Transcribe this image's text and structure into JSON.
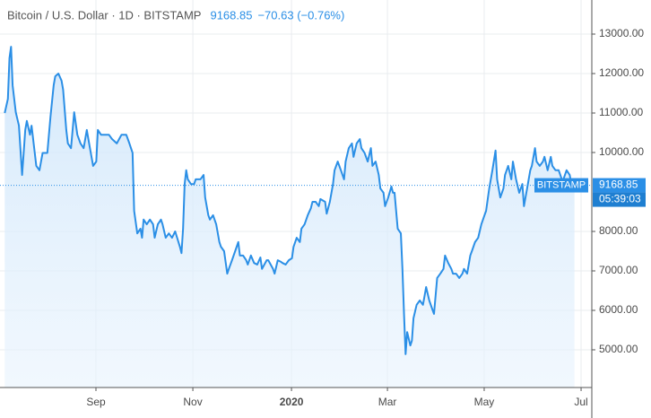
{
  "chart_data": {
    "type": "line",
    "title": "Bitcoin / U.S. Dollar · 1D · BITSTAMP",
    "last_price": 9168.85,
    "change": "−70.63 (−0.76%)",
    "price_label_exchange": "BITSTAMP",
    "countdown": "05:39:03",
    "xlim": [
      0,
      375
    ],
    "xticks": [
      {
        "value": 60.8,
        "label": "Sep"
      },
      {
        "value": 122.2,
        "label": "Nov"
      },
      {
        "value": 184.7,
        "label": "2020"
      },
      {
        "value": 245.5,
        "label": "Mar"
      },
      {
        "value": 306.8,
        "label": "May"
      },
      {
        "value": 368.2,
        "label": "Jul"
      }
    ],
    "ylim": [
      4045,
      13864
    ],
    "yticks": [
      {
        "value": 13000,
        "label": "13000.00"
      },
      {
        "value": 12000,
        "label": "12000.00"
      },
      {
        "value": 11000,
        "label": "11000.00"
      },
      {
        "value": 10000,
        "label": "10000.00"
      },
      {
        "value": 8000,
        "label": "8000.00"
      },
      {
        "value": 7000,
        "label": "7000.00"
      },
      {
        "value": 6000,
        "label": "6000.00"
      },
      {
        "value": 5000,
        "label": "5000.00"
      }
    ],
    "grid": true,
    "series": [
      {
        "color": "#2b8fe6",
        "x": [
          3,
          5,
          6,
          7,
          8,
          10,
          12,
          14,
          15,
          16,
          17,
          19,
          20,
          23,
          25,
          27,
          30,
          32,
          34,
          35,
          37,
          39,
          40,
          42,
          43,
          45,
          47,
          49,
          51,
          53,
          55,
          57,
          59,
          61,
          62,
          64,
          66,
          69,
          71,
          74,
          77,
          80,
          82,
          84,
          85,
          87,
          89,
          90,
          91,
          93,
          95,
          97,
          98,
          100,
          102,
          103,
          105,
          107,
          109,
          111,
          114,
          115,
          116,
          117,
          118,
          119,
          121,
          123,
          124,
          127,
          129,
          130,
          132,
          133,
          135,
          137,
          139,
          140,
          142,
          144,
          145,
          147,
          149,
          151,
          152,
          154,
          156,
          157,
          159,
          161,
          163,
          165,
          166,
          169,
          170,
          173,
          174,
          176,
          178,
          179,
          181,
          183,
          185,
          186,
          188,
          190,
          191,
          193,
          195,
          197,
          198,
          200,
          202,
          203,
          206,
          207,
          209,
          211,
          212,
          214,
          216,
          218,
          219,
          221,
          223,
          224,
          226,
          228,
          229,
          231,
          233,
          235,
          236,
          238,
          240,
          241,
          243,
          244,
          246,
          248,
          249,
          250,
          252,
          254,
          255,
          256,
          257,
          258,
          260,
          261,
          262,
          264,
          266,
          268,
          269,
          270,
          272,
          274,
          275,
          277,
          279,
          281,
          282,
          284,
          286,
          287,
          289,
          291,
          293,
          294,
          296,
          298,
          299,
          301,
          303,
          305,
          307,
          308,
          310,
          312,
          314,
          315,
          317,
          319,
          320,
          322,
          324,
          325,
          327,
          329,
          331,
          332,
          334,
          336,
          337,
          339,
          340,
          342,
          344,
          345,
          347,
          349,
          350,
          352,
          354,
          356,
          357,
          359,
          361,
          362,
          364
        ],
        "values": [
          11000,
          11360,
          12390,
          12680,
          11700,
          11020,
          10680,
          9430,
          9990,
          10570,
          10800,
          10450,
          10680,
          9660,
          9550,
          9990,
          9990,
          10910,
          11700,
          11930,
          12000,
          11820,
          11590,
          10570,
          10230,
          10110,
          11020,
          10450,
          10230,
          10110,
          10570,
          10110,
          9660,
          9770,
          10570,
          10450,
          10450,
          10450,
          10340,
          10230,
          10450,
          10450,
          10230,
          9990,
          8520,
          7950,
          8070,
          7840,
          8300,
          8180,
          8300,
          8180,
          7840,
          8180,
          8300,
          8180,
          7840,
          7950,
          7840,
          8000,
          7610,
          7450,
          8070,
          9200,
          9550,
          9320,
          9200,
          9200,
          9320,
          9320,
          9430,
          8860,
          8410,
          8300,
          8410,
          8180,
          7730,
          7610,
          7500,
          6930,
          7050,
          7270,
          7500,
          7730,
          7390,
          7390,
          7270,
          7160,
          7390,
          7200,
          7160,
          7340,
          7050,
          7270,
          7270,
          7050,
          6930,
          7270,
          7230,
          7200,
          7160,
          7270,
          7320,
          7610,
          7840,
          7730,
          8070,
          8180,
          8410,
          8590,
          8750,
          8750,
          8640,
          8820,
          8750,
          8450,
          8750,
          9200,
          9550,
          9770,
          9550,
          9320,
          9770,
          10110,
          10230,
          9890,
          10230,
          10340,
          10110,
          9990,
          9770,
          10110,
          9660,
          9770,
          9430,
          9090,
          8980,
          8640,
          8860,
          9140,
          8980,
          8980,
          8070,
          7950,
          7050,
          5910,
          4890,
          5450,
          5110,
          5230,
          5800,
          6140,
          6250,
          6140,
          6360,
          6590,
          6250,
          6020,
          5910,
          6820,
          6930,
          7050,
          7390,
          7200,
          7050,
          6930,
          6930,
          6820,
          6930,
          7050,
          6930,
          7390,
          7500,
          7730,
          7840,
          8180,
          8410,
          8520,
          9090,
          9550,
          10050,
          9320,
          8860,
          9090,
          9430,
          9660,
          9320,
          9770,
          9320,
          8980,
          9200,
          8640,
          9090,
          9550,
          9660,
          10110,
          9770,
          9660,
          9770,
          9890,
          9550,
          9890,
          9660,
          9550,
          9550,
          9320,
          9320,
          9550,
          9430,
          9200,
          9168.85
        ]
      }
    ]
  }
}
